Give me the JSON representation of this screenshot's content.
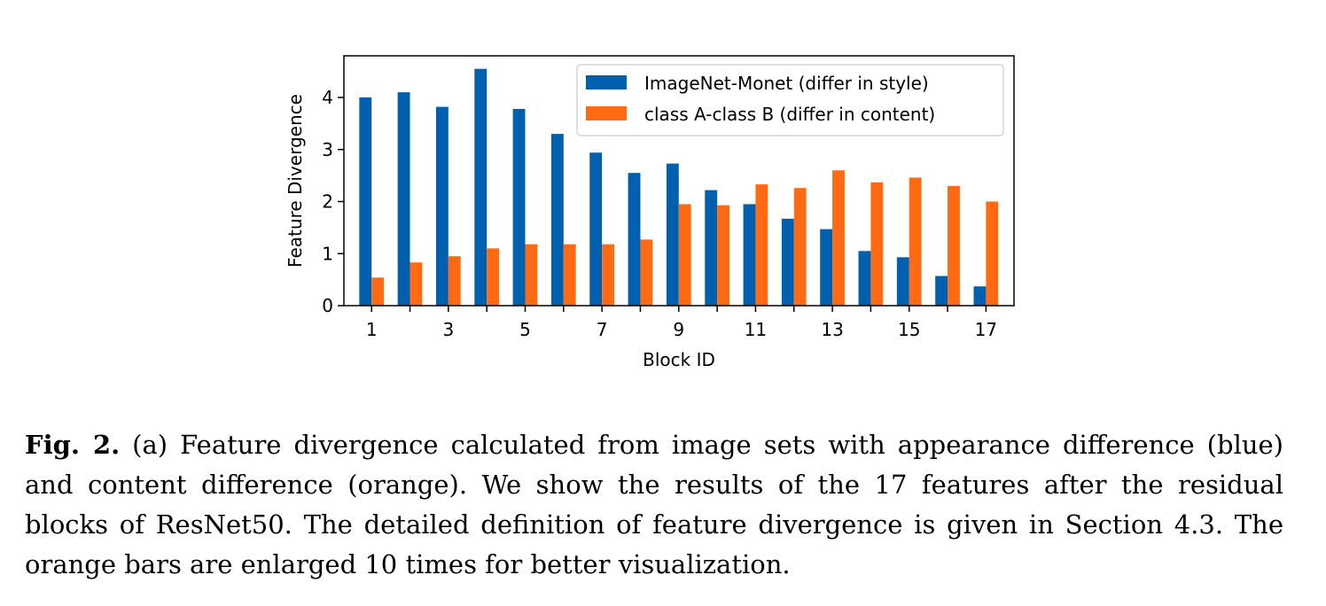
{
  "chart_data": {
    "type": "bar",
    "title": "",
    "xlabel": "Block ID",
    "ylabel": "Feature Divergence",
    "categories": [
      1,
      2,
      3,
      4,
      5,
      6,
      7,
      8,
      9,
      10,
      11,
      12,
      13,
      14,
      15,
      16,
      17
    ],
    "xticks": [
      "1",
      "3",
      "5",
      "7",
      "9",
      "11",
      "13",
      "15",
      "17"
    ],
    "yticks": [
      "0",
      "1",
      "2",
      "3",
      "4"
    ],
    "ylim": [
      0,
      4.8
    ],
    "grid": false,
    "legend_position": "top-right",
    "series": [
      {
        "name": "ImageNet-Monet (differ in style)",
        "color": "#0060AD",
        "values": [
          4.0,
          4.1,
          3.82,
          4.55,
          3.78,
          3.3,
          2.94,
          2.55,
          2.73,
          2.22,
          1.95,
          1.67,
          1.47,
          1.05,
          0.93,
          0.57,
          0.37
        ]
      },
      {
        "name": "class A-class B (differ in content)",
        "color": "#FF6A13",
        "values": [
          0.54,
          0.83,
          0.95,
          1.1,
          1.18,
          1.18,
          1.18,
          1.27,
          1.95,
          1.93,
          2.33,
          2.26,
          2.6,
          2.37,
          2.46,
          2.3,
          2.0
        ]
      }
    ]
  },
  "caption": {
    "label": "Fig. 2.",
    "text": "(a) Feature divergence calculated from image sets with appearance difference (blue) and content difference (orange). We show the results of the 17 features after the residual blocks of ResNet50. The detailed definition of feature divergence is given in Section 4.3. The orange bars are enlarged 10 times for better visualization."
  }
}
